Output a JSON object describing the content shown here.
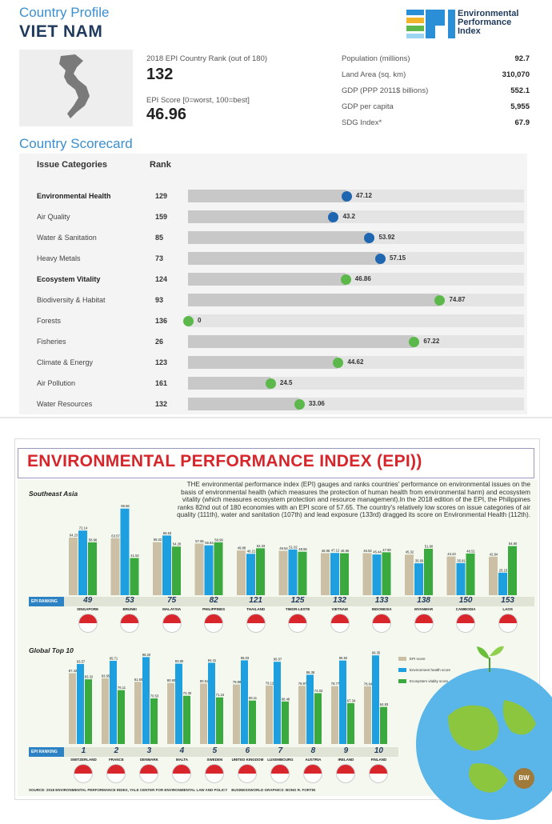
{
  "profile": {
    "title": "Country Profile",
    "country": "VIET NAM",
    "logo_text": [
      "Environmental",
      "Performance",
      "Index"
    ],
    "rank_label": "2018 EPI Country Rank (out of 180)",
    "rank_value": "132",
    "score_label": "EPI Score [0=worst, 100=best]",
    "score_value": "46.96",
    "stats": [
      {
        "label": "Population (millions)",
        "value": "92.7"
      },
      {
        "label": "Land Area (sq. km)",
        "value": "310,070"
      },
      {
        "label": "GDP (PPP 2011$ billions)",
        "value": "552.1"
      },
      {
        "label": "GDP per capita",
        "value": "5,955"
      },
      {
        "label": "SDG Index*",
        "value": "67.9"
      }
    ]
  },
  "scorecard": {
    "title": "Country Scorecard",
    "col_issue": "Issue Categories",
    "col_rank": "Rank",
    "colors": {
      "eh": "#1f66b0",
      "ev": "#5cb84a"
    },
    "rows": [
      {
        "name": "Environmental Health",
        "rank": "129",
        "score": 47.12,
        "label": "47.12",
        "bold": true,
        "group": "eh"
      },
      {
        "name": "Air Quality",
        "rank": "159",
        "score": 43.2,
        "label": "43.2",
        "bold": false,
        "group": "eh"
      },
      {
        "name": "Water & Sanitation",
        "rank": "85",
        "score": 53.92,
        "label": "53.92",
        "bold": false,
        "group": "eh"
      },
      {
        "name": "Heavy Metals",
        "rank": "73",
        "score": 57.15,
        "label": "57.15",
        "bold": false,
        "group": "eh"
      },
      {
        "name": "Ecosystem Vitality",
        "rank": "124",
        "score": 46.86,
        "label": "46.86",
        "bold": true,
        "group": "ev"
      },
      {
        "name": "Biodiversity & Habitat",
        "rank": "93",
        "score": 74.87,
        "label": "74.87",
        "bold": false,
        "group": "ev"
      },
      {
        "name": "Forests",
        "rank": "136",
        "score": 0,
        "label": "0",
        "bold": false,
        "group": "ev"
      },
      {
        "name": "Fisheries",
        "rank": "26",
        "score": 67.22,
        "label": "67.22",
        "bold": false,
        "group": "ev"
      },
      {
        "name": "Climate & Energy",
        "rank": "123",
        "score": 44.62,
        "label": "44.62",
        "bold": false,
        "group": "ev"
      },
      {
        "name": "Air Pollution",
        "rank": "161",
        "score": 24.5,
        "label": "24.5",
        "bold": false,
        "group": "ev"
      },
      {
        "name": "Water Resources",
        "rank": "132",
        "score": 33.06,
        "label": "33.06",
        "bold": false,
        "group": "ev"
      }
    ]
  },
  "infographic": {
    "title": "ENVIRONMENTAL PERFORMANCE INDEX (EPI))",
    "intro": "THE environmental performance index (EPI) gauges and ranks countries' performance on environmental issues on the basis of environmental health (which measures the protection of human health from environmental harm) and ecosystem vitality (which measures ecosystem protection and resource management).In the 2018 edition of the EPI, the Philippines ranks 82nd out of 180 economies with an EPI score of 57.65. The country's relatively low scores on issue categories of air quality (111th), water and sanitation (107th) and lead exposure (133rd) dragged its score on Environmental Health (112th).",
    "source": "SOURCE: 2018 ENVIRONMENTAL PERFORMANCE INDEX, YALE CENTER FOR ENVIRONMENTAL LAW AND POLICY",
    "graphics": "BUSINESSWORLD GRAPHICS: BONG R. FORTIN",
    "bw": "BW",
    "ranking_tag": "EPI RANKING",
    "colors": {
      "epi": "#cbbfa6",
      "eh": "#1e9fe0",
      "ev": "#3aaa3f"
    },
    "legend": [
      "EPI score",
      "Environment health score",
      "Ecosystem vitality score"
    ]
  },
  "chart_data": [
    {
      "type": "bar",
      "title": "Southeast Asia",
      "categories": [
        "SINGAPORE",
        "BRUNEI",
        "MALAYSIA",
        "PHILIPPINES",
        "THAILAND",
        "TIMOR-LESTE",
        "VIETNAM",
        "INDONESIA",
        "MYANMAR",
        "CAMBODIA",
        "LAOS"
      ],
      "ranks": [
        "49",
        "53",
        "75",
        "82",
        "121",
        "125",
        "132",
        "133",
        "138",
        "150",
        "153"
      ],
      "series": [
        {
          "name": "EPI score",
          "values": [
            64.23,
            63.57,
            59.22,
            57.65,
            49.88,
            49.54,
            46.96,
            46.92,
            45.32,
            43.23,
            42.94
          ],
          "labels": [
            "64.23",
            "63.57",
            "59.22",
            "57.65",
            "49.88",
            "49.54",
            "46.96",
            "46.92",
            "45.32",
            "43.23",
            "42.94"
          ]
        },
        {
          "name": "Environment health score",
          "values": [
            72.14,
            96.66,
            66.63,
            55.64,
            46.21,
            51.02,
            47.12,
            45.44,
            35.6,
            35.81,
            25.15
          ],
          "labels": [
            "72.14",
            "96.66",
            "66.63",
            "55.64",
            "46.21",
            "51.02",
            "47.12",
            "45.44",
            "35.60",
            "35.81",
            "25.15"
          ]
        },
        {
          "name": "Ecosystem vitality score",
          "values": [
            58.96,
            41.52,
            54.28,
            58.99,
            52.33,
            48.56,
            46.86,
            47.9,
            51.8,
            46.51,
            54.8
          ],
          "labels": [
            "58.96",
            "41.52",
            "54.28",
            "58.99",
            "52.33",
            "48.56",
            "46.86",
            "47.90",
            "51.80",
            "46.51",
            "54.80"
          ]
        }
      ]
    },
    {
      "type": "bar",
      "title": "Global Top 10",
      "categories": [
        "SWITZERLAND",
        "FRANCE",
        "DENMARK",
        "MALTA",
        "SWEDEN",
        "UNITED KINGDOM",
        "LUXEMBOURG",
        "AUSTRIA",
        "IRELAND",
        "FINLAND"
      ],
      "ranks": [
        "1",
        "2",
        "3",
        "4",
        "5",
        "6",
        "7",
        "8",
        "9",
        "10"
      ],
      "series": [
        {
          "name": "EPI score",
          "values": [
            87.42,
            83.95,
            81.6,
            80.9,
            80.51,
            79.89,
            79.12,
            78.97,
            78.77,
            78.64
          ],
          "labels": [
            "87.42",
            "83.95",
            "81.60",
            "80.90",
            "80.51",
            "79.89",
            "79.12",
            "78.97",
            "78.77",
            "78.64"
          ]
        },
        {
          "name": "Environment health score",
          "values": [
            93.57,
            95.71,
            98.2,
            93.8,
            94.41,
            96.03,
            95.07,
            86.38,
            95.92,
            99.35
          ],
          "labels": [
            "93.57",
            "95.71",
            "98.20",
            "93.80",
            "94.41",
            "96.03",
            "95.07",
            "86.38",
            "95.92",
            "99.35"
          ]
        },
        {
          "name": "Ecosystem vitality score",
          "values": [
            83.32,
            76.11,
            70.53,
            72.3,
            71.24,
            69.11,
            68.48,
            74.03,
            67.34,
            64.83
          ],
          "labels": [
            "83.32",
            "76.11",
            "70.53",
            "72.30",
            "71.24",
            "69.11",
            "68.48",
            "74.03",
            "67.34",
            "64.83"
          ]
        }
      ]
    }
  ]
}
